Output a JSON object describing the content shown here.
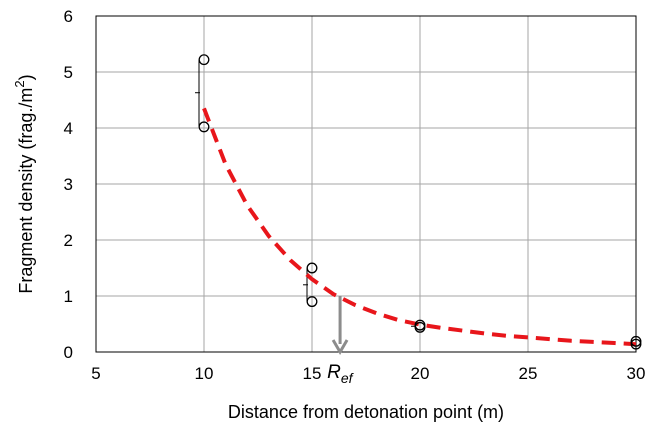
{
  "chart_data": {
    "type": "scatter",
    "title": "",
    "xlabel": "Distance from detonation point (m)",
    "ylabel_main": "Fragment density (frag./m",
    "ylabel_sup": "2",
    "ylabel_tail": ")",
    "xlim": [
      5,
      30
    ],
    "ylim": [
      0,
      6
    ],
    "x_ticks": [
      5,
      10,
      15,
      20,
      25,
      30
    ],
    "y_ticks": [
      0,
      1,
      2,
      3,
      4,
      5,
      6
    ],
    "grid": true,
    "legend": "none",
    "series": [
      {
        "kind": "points",
        "marker": "open-circle",
        "color": "#000000",
        "x": [
          10,
          10,
          15,
          15,
          20,
          20,
          30,
          30
        ],
        "y": [
          5.22,
          4.02,
          1.5,
          0.9,
          0.48,
          0.44,
          0.19,
          0.14
        ]
      },
      {
        "kind": "mean-errorbar",
        "color": "#000000",
        "x": [
          10,
          15,
          20,
          30
        ],
        "mean": [
          4.63,
          1.2,
          0.46,
          0.17
        ],
        "low": [
          4.02,
          0.9,
          0.44,
          0.14
        ],
        "high": [
          5.22,
          1.5,
          0.48,
          0.19
        ]
      },
      {
        "kind": "fit-curve",
        "style": "dashed",
        "color": "#e8161b",
        "x": [
          10,
          11,
          12,
          13,
          14,
          15,
          16,
          17,
          18,
          19,
          20,
          21,
          22,
          23,
          24,
          25,
          26,
          27,
          28,
          29,
          30
        ],
        "y": [
          4.35,
          3.35,
          2.62,
          2.07,
          1.64,
          1.3,
          1.03,
          0.84,
          0.69,
          0.57,
          0.49,
          0.43,
          0.38,
          0.33,
          0.29,
          0.26,
          0.23,
          0.2,
          0.18,
          0.16,
          0.14
        ]
      }
    ],
    "annotation": {
      "label_main": "R",
      "label_sub": "ef",
      "x": 16.3,
      "y_from": 1.0,
      "y_to": 0,
      "color": "#8c8c8c"
    }
  }
}
